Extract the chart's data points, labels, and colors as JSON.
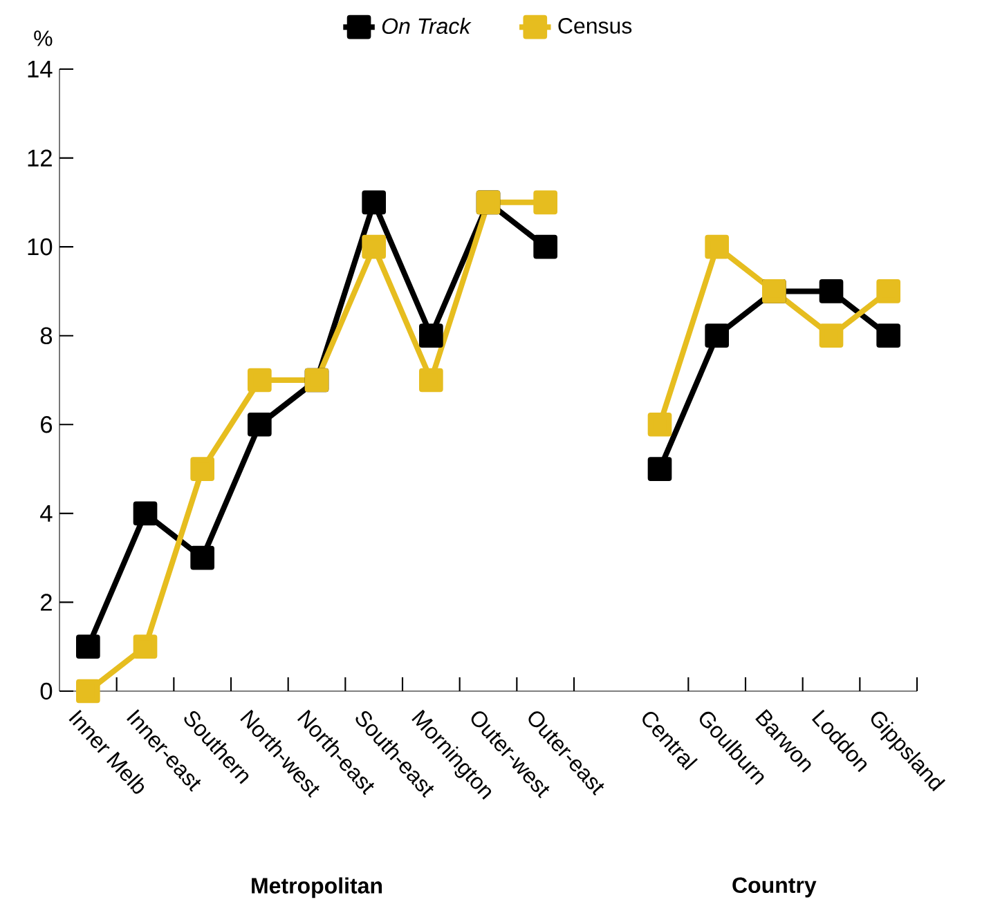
{
  "chart_data": {
    "type": "line",
    "categories": [
      "Inner Melb",
      "Inner-east",
      "Southern",
      "North-west",
      "North-east",
      "South-east",
      "Mornington",
      "Outer-west",
      "Outer-east",
      null,
      "Central",
      "Goulburn",
      "Barwon",
      "Loddon",
      "Gippsland"
    ],
    "series": [
      {
        "name": "*On Track*",
        "color": "#000000",
        "values": [
          1,
          4,
          3,
          6,
          7,
          11,
          8,
          11,
          10,
          null,
          5,
          8,
          9,
          9,
          8
        ]
      },
      {
        "name": "Census",
        "color": "#e6bd1f",
        "values": [
          0,
          1,
          5,
          7,
          7,
          10,
          7,
          11,
          11,
          null,
          6,
          10,
          9,
          8,
          9
        ]
      }
    ],
    "ylabel": "%",
    "ylim": [
      0,
      14
    ],
    "yticks": [
      0,
      2,
      4,
      6,
      8,
      10,
      12,
      14
    ],
    "annotations": [
      "Metropolitan",
      "Country"
    ],
    "legend": "top",
    "marker": "square",
    "line_style": "solid",
    "grid": false
  }
}
